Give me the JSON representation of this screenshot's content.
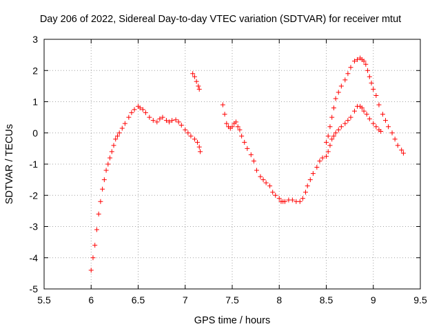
{
  "chart_data": {
    "type": "scatter",
    "title": "Day 206 of 2022, Sidereal Day-to-day VTEC variation (SDTVAR) for receiver mtut",
    "xlabel": "GPS time / hours",
    "ylabel": "SDTVAR / TECUs",
    "xlim": [
      5.5,
      9.5
    ],
    "ylim": [
      -5,
      3
    ],
    "xticks": [
      "5.5",
      "6",
      "6.5",
      "7",
      "7.5",
      "8",
      "8.5",
      "9",
      "9.5"
    ],
    "yticks": [
      "-5",
      "-4",
      "-3",
      "-2",
      "-1",
      "0",
      "1",
      "2",
      "3"
    ],
    "grid": true,
    "marker": "+",
    "series_color": "#ff0000",
    "series": [
      {
        "name": "segment-1",
        "x": [
          6.0,
          6.02,
          6.04,
          6.06,
          6.08,
          6.1,
          6.12,
          6.14,
          6.16,
          6.18,
          6.2,
          6.22,
          6.24,
          6.26,
          6.28,
          6.3,
          6.33,
          6.36,
          6.4,
          6.43,
          6.46,
          6.5,
          6.52,
          6.55,
          6.58,
          6.62,
          6.66,
          6.7,
          6.73,
          6.76,
          6.8,
          6.83,
          6.86,
          6.9,
          6.93,
          6.96,
          7.0,
          7.03,
          7.06,
          7.1,
          7.13,
          7.15,
          7.16
        ],
        "y": [
          -4.4,
          -4.0,
          -3.6,
          -3.1,
          -2.6,
          -2.2,
          -1.8,
          -1.5,
          -1.2,
          -1.0,
          -0.8,
          -0.6,
          -0.4,
          -0.2,
          -0.1,
          0.0,
          0.15,
          0.3,
          0.5,
          0.65,
          0.75,
          0.85,
          0.8,
          0.75,
          0.65,
          0.5,
          0.4,
          0.35,
          0.45,
          0.5,
          0.4,
          0.35,
          0.4,
          0.42,
          0.35,
          0.25,
          0.1,
          0.0,
          -0.1,
          -0.2,
          -0.3,
          -0.45,
          -0.6
        ]
      },
      {
        "name": "segment-2",
        "x": [
          7.08,
          7.1,
          7.12,
          7.14,
          7.15
        ],
        "y": [
          1.9,
          1.8,
          1.65,
          1.5,
          1.4
        ]
      },
      {
        "name": "segment-3",
        "x": [
          7.4,
          7.42,
          7.44,
          7.46,
          7.48,
          7.5,
          7.52,
          7.54,
          7.56,
          7.58,
          7.6,
          7.63,
          7.66,
          7.7,
          7.73,
          7.76,
          7.8,
          7.83,
          7.86,
          7.9,
          7.93,
          7.96,
          8.0,
          8.02,
          8.04,
          8.06,
          8.1,
          8.14,
          8.18,
          8.22,
          8.25,
          8.28,
          8.3,
          8.33,
          8.36,
          8.4,
          8.43,
          8.46,
          8.5,
          8.52,
          8.54,
          8.56,
          8.58,
          8.6,
          8.63,
          8.66,
          8.7,
          8.73,
          8.76,
          8.8,
          8.83,
          8.86,
          8.88,
          8.9,
          8.93,
          8.96,
          9.0,
          9.03,
          9.06,
          9.08
        ],
        "y": [
          0.9,
          0.6,
          0.3,
          0.2,
          0.15,
          0.2,
          0.3,
          0.35,
          0.2,
          0.1,
          -0.1,
          -0.3,
          -0.5,
          -0.7,
          -0.9,
          -1.2,
          -1.4,
          -1.5,
          -1.6,
          -1.7,
          -1.9,
          -2.0,
          -2.1,
          -2.2,
          -2.2,
          -2.2,
          -2.15,
          -2.15,
          -2.2,
          -2.2,
          -2.1,
          -1.9,
          -1.7,
          -1.5,
          -1.3,
          -1.1,
          -0.9,
          -0.8,
          -0.75,
          -0.6,
          -0.4,
          -0.2,
          -0.1,
          0.0,
          0.1,
          0.2,
          0.3,
          0.4,
          0.5,
          0.7,
          0.85,
          0.85,
          0.8,
          0.7,
          0.6,
          0.45,
          0.3,
          0.2,
          0.1,
          0.05
        ]
      },
      {
        "name": "segment-4",
        "x": [
          8.5,
          8.52,
          8.54,
          8.56,
          8.58,
          8.6,
          8.63,
          8.66,
          8.7,
          8.73,
          8.76,
          8.8,
          8.83,
          8.86,
          8.88,
          8.9,
          8.92,
          8.94,
          8.96,
          8.98,
          9.0,
          9.03,
          9.06,
          9.1,
          9.13,
          9.16,
          9.2,
          9.23,
          9.26,
          9.3,
          9.32
        ],
        "y": [
          -0.3,
          -0.1,
          0.2,
          0.5,
          0.8,
          1.1,
          1.3,
          1.5,
          1.7,
          1.9,
          2.1,
          2.3,
          2.35,
          2.4,
          2.35,
          2.3,
          2.2,
          2.0,
          1.8,
          1.6,
          1.4,
          1.2,
          0.9,
          0.6,
          0.4,
          0.2,
          0.0,
          -0.2,
          -0.4,
          -0.55,
          -0.65
        ]
      }
    ]
  }
}
